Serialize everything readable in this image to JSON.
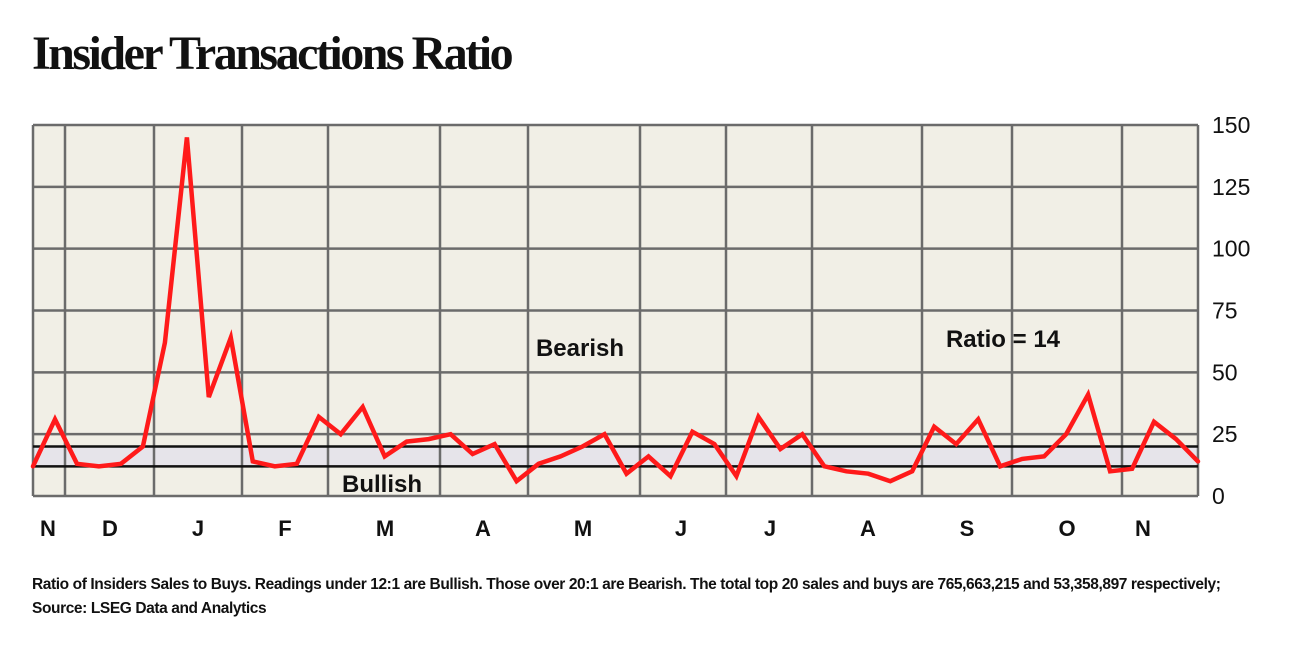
{
  "chart_data": {
    "type": "line",
    "title": "Insider Transactions Ratio",
    "caption": "Ratio of Insiders Sales to Buys. Readings under 12:1 are Bullish. Those over 20:1 are Bearish. The total top 20 sales and buys are 765,663,215 and 53,358,897 respectively; Source: LSEG Data and Analytics",
    "ylim": [
      0,
      150
    ],
    "yticks": [
      0,
      25,
      50,
      75,
      100,
      125,
      150
    ],
    "ytick_labels": [
      "0",
      "25",
      "50",
      "75",
      "100",
      "125",
      "150"
    ],
    "month_labels": [
      "N",
      "D",
      "J",
      "F",
      "M",
      "A",
      "M",
      "J",
      "J",
      "A",
      "S",
      "O",
      "N"
    ],
    "grid": true,
    "background_color": "#f1efe6",
    "line_color": "#ff1a1a",
    "bullish_threshold": 12,
    "bearish_threshold": 20,
    "zone_labels": {
      "bearish": "Bearish",
      "bullish": "Bullish"
    },
    "annotation": "Ratio = 14",
    "series": [
      {
        "values": [
          12,
          31,
          13,
          12,
          13,
          20,
          62,
          145,
          40,
          64,
          14,
          12,
          13,
          32,
          25,
          36,
          16,
          22,
          23,
          25,
          17,
          21,
          6,
          13,
          16,
          20,
          25,
          9,
          16,
          8,
          26,
          21,
          8,
          32,
          19,
          25,
          12,
          10,
          9,
          6,
          10,
          28,
          21,
          31,
          12,
          15,
          16,
          25,
          41,
          10,
          11,
          30,
          23,
          14
        ]
      }
    ]
  }
}
